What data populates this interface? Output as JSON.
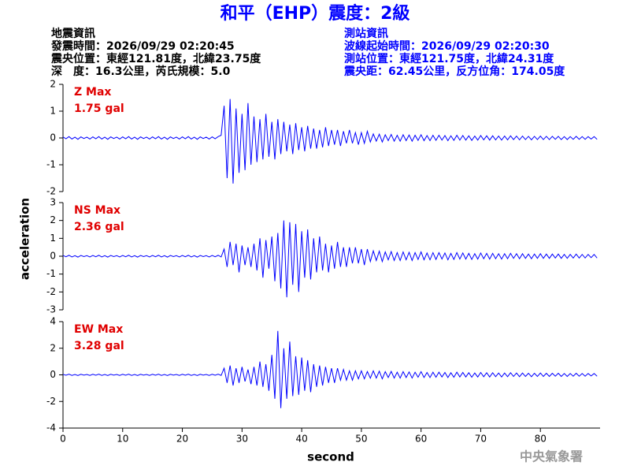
{
  "header": {
    "title": "和平（EHP）震度：2級",
    "left": [
      "地震資訊",
      "發震時間：2026/09/29 02:20:45",
      "震央位置：東經121.81度，北緯23.75度",
      "深　度：16.3公里，芮氏規模：5.0"
    ],
    "right": [
      "測站資訊",
      "波線起始時間：2026/09/29 02:20:30",
      "測站位置：東經121.75度，北緯24.31度",
      "震央距：62.45公里，反方位角：174.05度"
    ]
  },
  "axis_labels": {
    "x": "second",
    "y": "acceleration"
  },
  "footer": "中央氣象署",
  "chart_data": [
    {
      "type": "line",
      "color": "#0000ff",
      "annotations": [
        "Z Max",
        "1.75 gal"
      ],
      "xlim": [
        0,
        90
      ],
      "ylim": [
        -2,
        2
      ],
      "yticks": [
        -2,
        -1,
        0,
        1,
        2
      ],
      "x": [
        0,
        0.5,
        1,
        1.5,
        2,
        2.5,
        3,
        3.5,
        4,
        4.5,
        5,
        5.5,
        6,
        6.5,
        7,
        7.5,
        8,
        8.5,
        9,
        9.5,
        10,
        10.5,
        11,
        11.5,
        12,
        12.5,
        13,
        13.5,
        14,
        14.5,
        15,
        15.5,
        16,
        16.5,
        17,
        17.5,
        18,
        18.5,
        19,
        19.5,
        20,
        20.5,
        21,
        21.5,
        22,
        22.5,
        23,
        23.5,
        24,
        24.5,
        25,
        25.5,
        26,
        26.5,
        27,
        27.5,
        28,
        28.5,
        29,
        29.5,
        30,
        30.5,
        31,
        31.5,
        32,
        32.5,
        33,
        33.5,
        34,
        34.5,
        35,
        35.5,
        36,
        36.5,
        37,
        37.5,
        38,
        38.5,
        39,
        39.5,
        40,
        40.5,
        41,
        41.5,
        42,
        42.5,
        43,
        43.5,
        44,
        44.5,
        45,
        45.5,
        46,
        46.5,
        47,
        47.5,
        48,
        48.5,
        49,
        49.5,
        50,
        50.5,
        51,
        51.5,
        52,
        52.5,
        53,
        53.5,
        54,
        54.5,
        55,
        55.5,
        56,
        56.5,
        57,
        57.5,
        58,
        58.5,
        59,
        59.5,
        60,
        60.5,
        61,
        61.5,
        62,
        62.5,
        63,
        63.5,
        64,
        64.5,
        65,
        65.5,
        66,
        66.5,
        67,
        67.5,
        68,
        68.5,
        69,
        69.5,
        70,
        70.5,
        71,
        71.5,
        72,
        72.5,
        73,
        73.5,
        74,
        74.5,
        75,
        75.5,
        76,
        76.5,
        77,
        77.5,
        78,
        78.5,
        79,
        79.5,
        80,
        80.5,
        81,
        81.5,
        82,
        82.5,
        83,
        83.5,
        84,
        84.5,
        85,
        85.5,
        86,
        86.5,
        87,
        87.5,
        88,
        88.5,
        89,
        89.5
      ],
      "values": [
        0.04,
        -0.03,
        0.05,
        -0.04,
        0.03,
        -0.05,
        0.04,
        -0.02,
        0.03,
        -0.04,
        0.04,
        -0.03,
        0.05,
        -0.04,
        0.03,
        -0.05,
        0.04,
        -0.02,
        0.03,
        -0.04,
        0.04,
        -0.03,
        0.05,
        -0.04,
        0.03,
        -0.05,
        0.04,
        -0.02,
        0.03,
        -0.04,
        0.04,
        -0.03,
        0.05,
        -0.04,
        0.03,
        -0.05,
        0.04,
        -0.02,
        0.03,
        -0.04,
        0.04,
        -0.03,
        0.05,
        -0.04,
        0.03,
        -0.05,
        0.04,
        -0.02,
        0.03,
        -0.04,
        0.04,
        -0.03,
        0.05,
        0.1,
        1.2,
        -1.5,
        1.45,
        -1.7,
        1.1,
        -1.3,
        0.9,
        -1.2,
        1.3,
        -1.0,
        0.8,
        -0.9,
        0.7,
        -0.8,
        0.9,
        -0.7,
        0.6,
        -0.8,
        0.7,
        -0.6,
        0.6,
        -0.5,
        0.5,
        -0.6,
        0.55,
        -0.45,
        0.4,
        -0.5,
        0.45,
        -0.4,
        0.35,
        -0.4,
        0.3,
        -0.35,
        0.4,
        -0.3,
        0.3,
        -0.25,
        0.3,
        -0.3,
        0.25,
        -0.2,
        0.3,
        -0.2,
        0.2,
        -0.25,
        0.2,
        -0.2,
        0.25,
        -0.15,
        0.15,
        -0.12,
        0.14,
        -0.15,
        0.12,
        -0.1,
        0.13,
        -0.12,
        0.1,
        -0.12,
        0.12,
        -0.1,
        0.11,
        -0.12,
        0.1,
        -0.09,
        0.12,
        -0.1,
        0.09,
        -0.1,
        0.1,
        -0.09,
        0.1,
        -0.08,
        0.09,
        -0.1,
        0.08,
        -0.09,
        0.1,
        -0.08,
        0.09,
        -0.08,
        0.08,
        -0.09,
        0.07,
        -0.08,
        0.09,
        -0.07,
        0.08,
        -0.08,
        0.08,
        -0.07,
        0.07,
        -0.08,
        0.07,
        -0.07,
        0.08,
        -0.06,
        0.07,
        -0.07,
        0.07,
        -0.06,
        0.06,
        -0.07,
        0.06,
        -0.06,
        0.07,
        -0.06,
        0.06,
        -0.06,
        0.06,
        -0.05,
        0.06,
        -0.06,
        0.05,
        -0.06,
        0.05,
        -0.05,
        0.06,
        -0.05,
        0.05,
        -0.05,
        0.05,
        -0.04,
        0.05,
        -0.05
      ]
    },
    {
      "type": "line",
      "color": "#0000ff",
      "annotations": [
        "NS Max",
        "2.36 gal"
      ],
      "xlim": [
        0,
        90
      ],
      "ylim": [
        -3,
        3
      ],
      "yticks": [
        -3,
        -2,
        -1,
        0,
        1,
        2,
        3
      ],
      "x": [
        0,
        0.5,
        1,
        1.5,
        2,
        2.5,
        3,
        3.5,
        4,
        4.5,
        5,
        5.5,
        6,
        6.5,
        7,
        7.5,
        8,
        8.5,
        9,
        9.5,
        10,
        10.5,
        11,
        11.5,
        12,
        12.5,
        13,
        13.5,
        14,
        14.5,
        15,
        15.5,
        16,
        16.5,
        17,
        17.5,
        18,
        18.5,
        19,
        19.5,
        20,
        20.5,
        21,
        21.5,
        22,
        22.5,
        23,
        23.5,
        24,
        24.5,
        25,
        25.5,
        26,
        26.5,
        27,
        27.5,
        28,
        28.5,
        29,
        29.5,
        30,
        30.5,
        31,
        31.5,
        32,
        32.5,
        33,
        33.5,
        34,
        34.5,
        35,
        35.5,
        36,
        36.5,
        37,
        37.5,
        38,
        38.5,
        39,
        39.5,
        40,
        40.5,
        41,
        41.5,
        42,
        42.5,
        43,
        43.5,
        44,
        44.5,
        45,
        45.5,
        46,
        46.5,
        47,
        47.5,
        48,
        48.5,
        49,
        49.5,
        50,
        50.5,
        51,
        51.5,
        52,
        52.5,
        53,
        53.5,
        54,
        54.5,
        55,
        55.5,
        56,
        56.5,
        57,
        57.5,
        58,
        58.5,
        59,
        59.5,
        60,
        60.5,
        61,
        61.5,
        62,
        62.5,
        63,
        63.5,
        64,
        64.5,
        65,
        65.5,
        66,
        66.5,
        67,
        67.5,
        68,
        68.5,
        69,
        69.5,
        70,
        70.5,
        71,
        71.5,
        72,
        72.5,
        73,
        73.5,
        74,
        74.5,
        75,
        75.5,
        76,
        76.5,
        77,
        77.5,
        78,
        78.5,
        79,
        79.5,
        80,
        80.5,
        81,
        81.5,
        82,
        82.5,
        83,
        83.5,
        84,
        84.5,
        85,
        85.5,
        86,
        86.5,
        87,
        87.5,
        88,
        88.5,
        89,
        89.5
      ],
      "values": [
        0.04,
        -0.03,
        0.05,
        -0.04,
        0.03,
        -0.05,
        0.04,
        -0.02,
        0.03,
        -0.04,
        0.04,
        -0.03,
        0.05,
        -0.04,
        0.03,
        -0.05,
        0.04,
        -0.02,
        0.03,
        -0.04,
        0.04,
        -0.03,
        0.05,
        -0.04,
        0.03,
        -0.05,
        0.04,
        -0.02,
        0.03,
        -0.04,
        0.04,
        -0.03,
        0.05,
        -0.04,
        0.03,
        -0.05,
        0.04,
        -0.02,
        0.03,
        -0.04,
        0.04,
        -0.03,
        0.05,
        -0.04,
        0.03,
        -0.05,
        0.04,
        -0.02,
        0.03,
        -0.04,
        0.04,
        -0.03,
        0.05,
        -0.04,
        0.4,
        -0.6,
        0.8,
        -0.5,
        0.7,
        -0.9,
        0.6,
        -0.5,
        0.5,
        -0.6,
        0.7,
        -0.8,
        1.0,
        -1.2,
        0.9,
        -0.7,
        1.1,
        -1.4,
        1.3,
        -1.8,
        2.0,
        -2.3,
        1.9,
        -1.6,
        1.8,
        -2.0,
        1.4,
        -1.2,
        1.5,
        -1.3,
        1.0,
        -0.9,
        1.1,
        -0.8,
        0.7,
        -0.9,
        0.6,
        -0.7,
        0.8,
        -0.6,
        0.5,
        -0.6,
        0.5,
        -0.4,
        0.5,
        -0.4,
        0.4,
        -0.5,
        0.4,
        -0.3,
        0.3,
        -0.24,
        0.28,
        -0.3,
        0.24,
        -0.2,
        0.26,
        -0.24,
        0.2,
        -0.24,
        0.24,
        -0.2,
        0.22,
        -0.24,
        0.2,
        -0.18,
        0.24,
        -0.2,
        0.18,
        -0.2,
        0.2,
        -0.18,
        0.2,
        -0.16,
        0.18,
        -0.2,
        0.16,
        -0.18,
        0.2,
        -0.16,
        0.18,
        -0.16,
        0.16,
        -0.18,
        0.14,
        -0.16,
        0.18,
        -0.14,
        0.16,
        -0.16,
        0.16,
        -0.14,
        0.14,
        -0.16,
        0.14,
        -0.14,
        0.16,
        -0.12,
        0.14,
        -0.14,
        0.14,
        -0.12,
        0.12,
        -0.14,
        0.12,
        -0.12,
        0.14,
        -0.12,
        0.12,
        -0.12,
        0.12,
        -0.1,
        0.12,
        -0.12,
        0.1,
        -0.12,
        0.1,
        -0.1,
        0.12,
        -0.1,
        0.1,
        -0.1,
        0.1,
        -0.08,
        0.1,
        -0.1
      ]
    },
    {
      "type": "line",
      "color": "#0000ff",
      "annotations": [
        "EW Max",
        "3.28 gal"
      ],
      "xlim": [
        0,
        90
      ],
      "ylim": [
        -4,
        4
      ],
      "yticks": [
        -4,
        -2,
        0,
        2,
        4
      ],
      "xticks": [
        0,
        10,
        20,
        30,
        40,
        50,
        60,
        70,
        80
      ],
      "x": [
        0,
        0.5,
        1,
        1.5,
        2,
        2.5,
        3,
        3.5,
        4,
        4.5,
        5,
        5.5,
        6,
        6.5,
        7,
        7.5,
        8,
        8.5,
        9,
        9.5,
        10,
        10.5,
        11,
        11.5,
        12,
        12.5,
        13,
        13.5,
        14,
        14.5,
        15,
        15.5,
        16,
        16.5,
        17,
        17.5,
        18,
        18.5,
        19,
        19.5,
        20,
        20.5,
        21,
        21.5,
        22,
        22.5,
        23,
        23.5,
        24,
        24.5,
        25,
        25.5,
        26,
        26.5,
        27,
        27.5,
        28,
        28.5,
        29,
        29.5,
        30,
        30.5,
        31,
        31.5,
        32,
        32.5,
        33,
        33.5,
        34,
        34.5,
        35,
        35.5,
        36,
        36.5,
        37,
        37.5,
        38,
        38.5,
        39,
        39.5,
        40,
        40.5,
        41,
        41.5,
        42,
        42.5,
        43,
        43.5,
        44,
        44.5,
        45,
        45.5,
        46,
        46.5,
        47,
        47.5,
        48,
        48.5,
        49,
        49.5,
        50,
        50.5,
        51,
        51.5,
        52,
        52.5,
        53,
        53.5,
        54,
        54.5,
        55,
        55.5,
        56,
        56.5,
        57,
        57.5,
        58,
        58.5,
        59,
        59.5,
        60,
        60.5,
        61,
        61.5,
        62,
        62.5,
        63,
        63.5,
        64,
        64.5,
        65,
        65.5,
        66,
        66.5,
        67,
        67.5,
        68,
        68.5,
        69,
        69.5,
        70,
        70.5,
        71,
        71.5,
        72,
        72.5,
        73,
        73.5,
        74,
        74.5,
        75,
        75.5,
        76,
        76.5,
        77,
        77.5,
        78,
        78.5,
        79,
        79.5,
        80,
        80.5,
        81,
        81.5,
        82,
        82.5,
        83,
        83.5,
        84,
        84.5,
        85,
        85.5,
        86,
        86.5,
        87,
        87.5,
        88,
        88.5,
        89,
        89.5
      ],
      "values": [
        0.04,
        -0.03,
        0.05,
        -0.04,
        0.03,
        -0.05,
        0.04,
        -0.02,
        0.03,
        -0.04,
        0.04,
        -0.03,
        0.05,
        -0.04,
        0.03,
        -0.05,
        0.04,
        -0.02,
        0.03,
        -0.04,
        0.04,
        -0.03,
        0.05,
        -0.04,
        0.03,
        -0.05,
        0.04,
        -0.02,
        0.03,
        -0.04,
        0.04,
        -0.03,
        0.05,
        -0.04,
        0.03,
        -0.05,
        0.04,
        -0.02,
        0.03,
        -0.04,
        0.04,
        -0.03,
        0.05,
        -0.04,
        0.03,
        -0.05,
        0.04,
        -0.02,
        0.03,
        -0.04,
        0.04,
        -0.03,
        0.05,
        -0.04,
        0.5,
        -0.6,
        0.7,
        -0.8,
        0.5,
        -0.6,
        0.6,
        -0.5,
        0.4,
        -0.7,
        0.6,
        -0.8,
        1.0,
        -0.9,
        0.8,
        -1.2,
        1.5,
        -1.8,
        3.3,
        -2.5,
        2.0,
        -1.8,
        2.5,
        -1.6,
        1.4,
        -1.5,
        1.3,
        -1.2,
        1.1,
        -1.3,
        0.8,
        -0.9,
        0.7,
        -0.8,
        0.6,
        -0.6,
        0.5,
        -0.6,
        0.5,
        -0.4,
        0.4,
        -0.4,
        0.3,
        -0.4,
        0.3,
        -0.3,
        0.3,
        -0.3,
        0.25,
        -0.25,
        0.3,
        -0.24,
        0.28,
        -0.3,
        0.24,
        -0.2,
        0.26,
        -0.24,
        0.2,
        -0.24,
        0.24,
        -0.2,
        0.22,
        -0.24,
        0.2,
        -0.18,
        0.24,
        -0.2,
        0.18,
        -0.2,
        0.2,
        -0.18,
        0.2,
        -0.16,
        0.18,
        -0.2,
        0.16,
        -0.18,
        0.2,
        -0.16,
        0.18,
        -0.16,
        0.16,
        -0.18,
        0.14,
        -0.16,
        0.18,
        -0.14,
        0.16,
        -0.16,
        0.16,
        -0.14,
        0.14,
        -0.16,
        0.14,
        -0.14,
        0.16,
        -0.12,
        0.14,
        -0.14,
        0.14,
        -0.12,
        0.12,
        -0.14,
        0.12,
        -0.12,
        0.14,
        -0.12,
        0.12,
        -0.12,
        0.12,
        -0.1,
        0.12,
        -0.12,
        0.1,
        -0.12,
        0.1,
        -0.1,
        0.12,
        -0.1,
        0.1,
        -0.1,
        0.1,
        -0.08,
        0.1,
        -0.1
      ]
    }
  ]
}
